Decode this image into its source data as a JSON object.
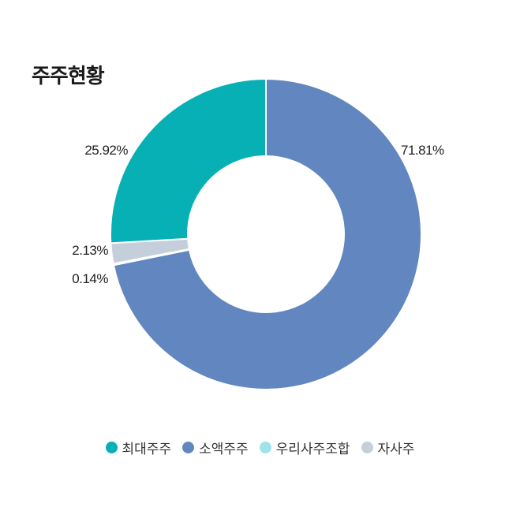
{
  "title": "주주현황",
  "chart_data": {
    "type": "pie",
    "variant": "donut",
    "title": "주주현황",
    "labels": [
      "최대주주",
      "소액주주",
      "우리사주조합",
      "자사주"
    ],
    "values": [
      25.92,
      71.81,
      0.14,
      2.13
    ],
    "value_labels": [
      "25.92%",
      "71.81%",
      "0.14%",
      "2.13%"
    ],
    "colors": [
      "#06b0b5",
      "#6287c0",
      "#9fe3e8",
      "#c5cfdc"
    ],
    "legend_position": "bottom"
  }
}
